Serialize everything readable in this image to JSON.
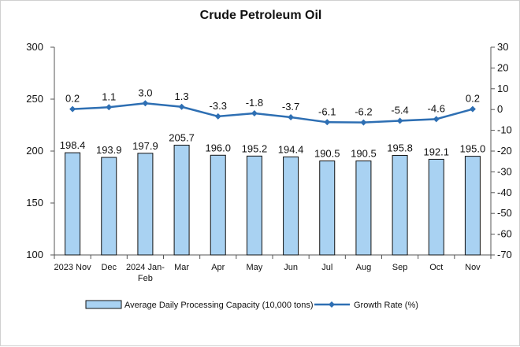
{
  "chart_data": {
    "type": "bar",
    "title": "Crude Petroleum Oil",
    "categories": [
      "2023 Nov",
      "Dec",
      "2024 Jan-Feb",
      "Mar",
      "Apr",
      "May",
      "Jun",
      "Jul",
      "Aug",
      "Sep",
      "Oct",
      "Nov"
    ],
    "series": [
      {
        "name": "Average Daily Processing Capacity (10,000 tons)",
        "type": "bar",
        "axis": "left",
        "color": "#a9d2f2",
        "values": [
          198.4,
          193.9,
          197.9,
          205.7,
          196.0,
          195.2,
          194.4,
          190.5,
          190.5,
          195.8,
          192.1,
          195.0
        ]
      },
      {
        "name": "Growth Rate (%)",
        "type": "line",
        "axis": "right",
        "color": "#2e6fb3",
        "values": [
          0.2,
          1.1,
          3.0,
          1.3,
          -3.3,
          -1.8,
          -3.7,
          -6.1,
          -6.2,
          -5.4,
          -4.6,
          0.2
        ]
      }
    ],
    "y_left": {
      "min": 100,
      "max": 300,
      "ticks": [
        100,
        150,
        200,
        250,
        300
      ]
    },
    "y_right": {
      "min": -70,
      "max": 30,
      "ticks": [
        30,
        20,
        10,
        0,
        -10,
        -20,
        -30,
        -40,
        -50,
        -60,
        -70
      ]
    },
    "grid": false,
    "legend_position": "bottom"
  }
}
